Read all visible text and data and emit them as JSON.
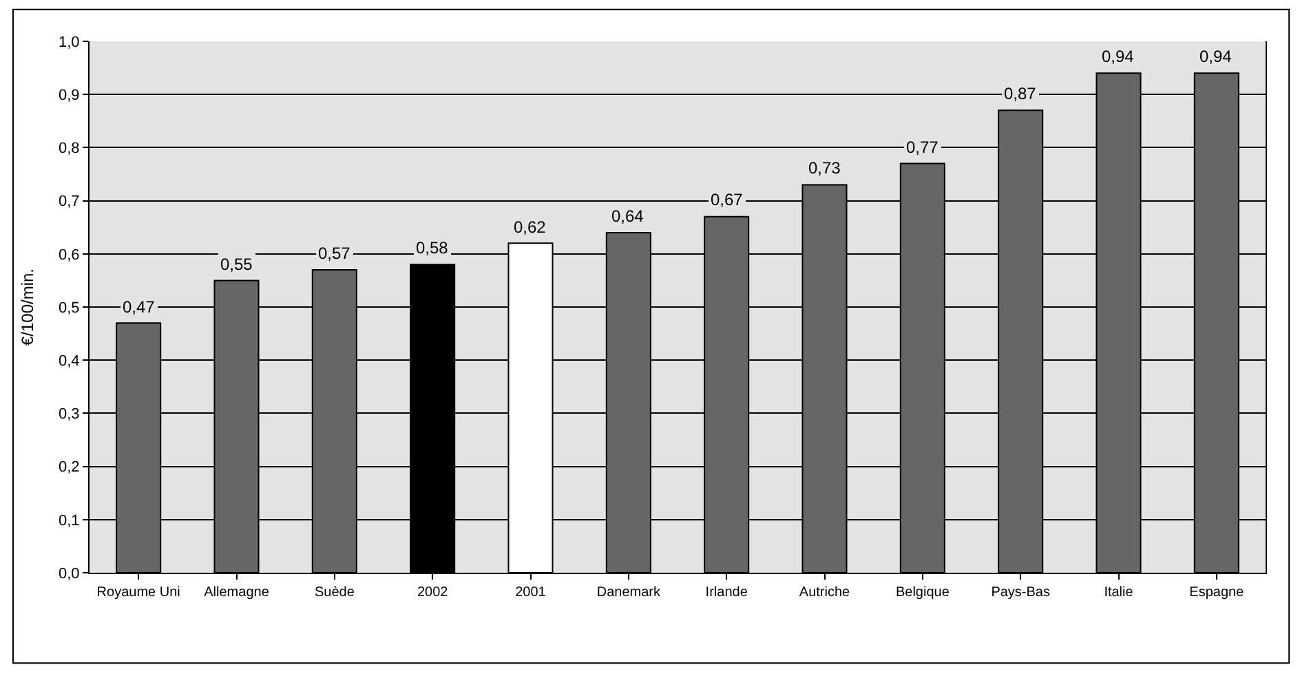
{
  "chart_data": {
    "type": "bar",
    "ylabel": "€/100/min.",
    "categories": [
      "Royaume Uni",
      "Allemagne",
      "Suède",
      "2002",
      "2001",
      "Danemark",
      "Irlande",
      "Autriche",
      "Belgique",
      "Pays-Bas",
      "Italie",
      "Espagne"
    ],
    "values": [
      0.47,
      0.55,
      0.57,
      0.58,
      0.62,
      0.64,
      0.67,
      0.73,
      0.77,
      0.87,
      0.94,
      0.94
    ],
    "value_labels": [
      "0,47",
      "0,55",
      "0,57",
      "0,58",
      "0,62",
      "0,64",
      "0,67",
      "0,73",
      "0,77",
      "0,87",
      "0,94",
      "0,94"
    ],
    "colors": [
      "#666666",
      "#666666",
      "#666666",
      "#000000",
      "#ffffff",
      "#666666",
      "#666666",
      "#666666",
      "#666666",
      "#666666",
      "#666666",
      "#666666"
    ],
    "ylim": [
      0,
      1
    ],
    "yticks": [
      {
        "value": 0,
        "label": "0,0"
      },
      {
        "value": 0.1,
        "label": "0,1"
      },
      {
        "value": 0.2,
        "label": "0,2"
      },
      {
        "value": 0.3,
        "label": "0,3"
      },
      {
        "value": 0.4,
        "label": "0,4"
      },
      {
        "value": 0.5,
        "label": "0,5"
      },
      {
        "value": 0.6,
        "label": "0,6"
      },
      {
        "value": 0.7,
        "label": "0,7"
      },
      {
        "value": 0.8,
        "label": "0,8"
      },
      {
        "value": 0.9,
        "label": "0,9"
      },
      {
        "value": 1,
        "label": "1,0"
      }
    ],
    "grid": "y"
  }
}
